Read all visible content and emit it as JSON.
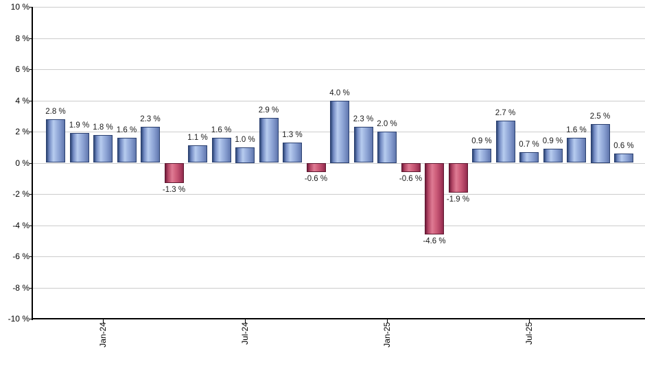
{
  "chart_data": {
    "type": "bar",
    "title": "",
    "series_name": "monthly-percent-change",
    "values": [
      2.8,
      1.9,
      1.8,
      1.6,
      2.3,
      -1.3,
      1.1,
      1.6,
      1.0,
      2.9,
      1.3,
      -0.6,
      4.0,
      2.3,
      2.0,
      -0.6,
      -4.6,
      -1.9,
      0.9,
      2.7,
      0.7,
      0.9,
      1.6,
      2.5,
      0.6
    ],
    "bar_labels": [
      "2.8 %",
      "1.9 %",
      "1.8 %",
      "1.6 %",
      "2.3 %",
      "-1.3 %",
      "1.1 %",
      "1.6 %",
      "1.0 %",
      "2.9 %",
      "1.3 %",
      "-0.6 %",
      "4.0 %",
      "2.3 %",
      "2.0 %",
      "-0.6 %",
      "-4.6 %",
      "-1.9 %",
      "0.9 %",
      "2.7 %",
      "0.7 %",
      "0.9 %",
      "1.6 %",
      "2.5 %",
      "0.6 %"
    ],
    "ylim": [
      -10,
      10
    ],
    "ytick_step": 2,
    "ytick_values": [
      10,
      8,
      6,
      4,
      2,
      0,
      -2,
      -4,
      -6,
      -8,
      -10
    ],
    "ytick_labels": [
      "10 %",
      "8 %",
      "6 %",
      "4 %",
      "2 %",
      "0 %",
      "-2 %",
      "-4 %",
      "-6 %",
      "-8 %",
      "-10 %"
    ],
    "xticks": [
      {
        "bar_index": 2,
        "label": "Jan-24"
      },
      {
        "bar_index": 8,
        "label": "Jul-24"
      },
      {
        "bar_index": 14,
        "label": "Jan-25"
      },
      {
        "bar_index": 20,
        "label": "Jul-25"
      }
    ],
    "grid": true,
    "legend": false,
    "colors": {
      "positive_bar": "#8AA5D8",
      "positive_bar_dark": "#2C4575",
      "positive_bar_light": "#B7CCEF",
      "negative_bar": "#C14A68",
      "negative_bar_dark": "#701B3B",
      "negative_bar_light": "#DF7B94",
      "gridline": "#CCCCCC",
      "axis": "#000000",
      "label_text": "#1A1A1A",
      "background": "#FFFFFF"
    }
  }
}
